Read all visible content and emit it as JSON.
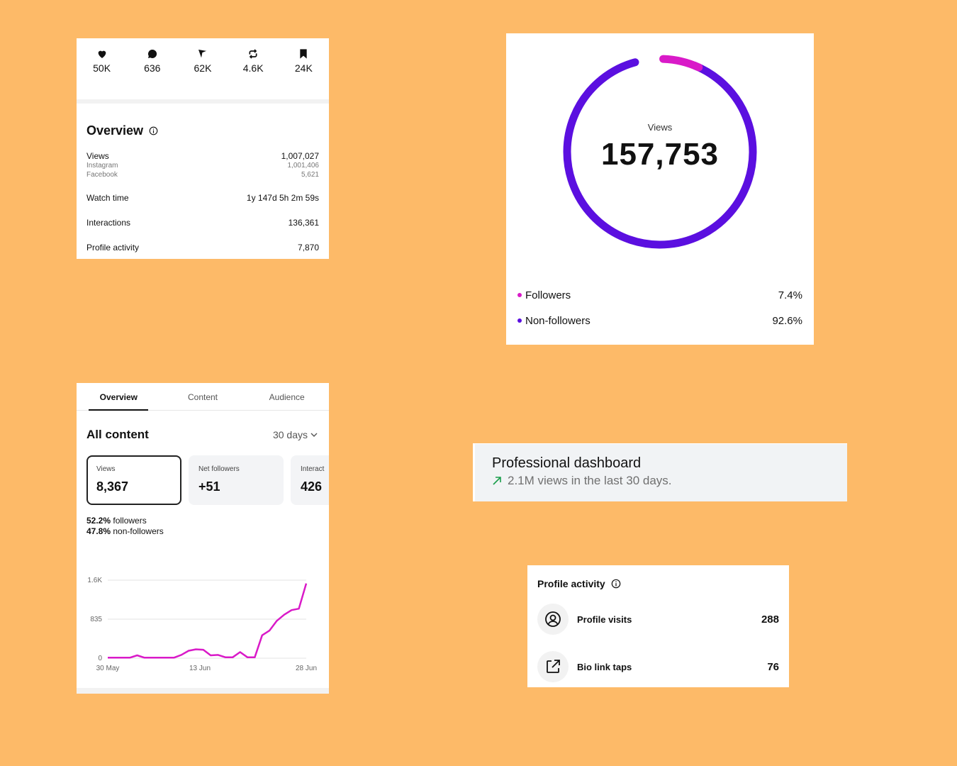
{
  "stats": {
    "items": [
      {
        "icon": "heart-icon",
        "value": "50K"
      },
      {
        "icon": "comment-icon",
        "value": "636"
      },
      {
        "icon": "send-icon",
        "value": "62K"
      },
      {
        "icon": "repost-icon",
        "value": "4.6K"
      },
      {
        "icon": "bookmark-icon",
        "value": "24K"
      }
    ]
  },
  "overview": {
    "title": "Overview",
    "views_label": "Views",
    "views_value": "1,007,027",
    "instagram_label": "Instagram",
    "instagram_value": "1,001,406",
    "facebook_label": "Facebook",
    "facebook_value": "5,621",
    "watch_label": "Watch time",
    "watch_value": "1y 147d 5h 2m 59s",
    "interactions_label": "Interactions",
    "interactions_value": "136,361",
    "profile_label": "Profile activity",
    "profile_value": "7,870"
  },
  "donut": {
    "label": "Views",
    "value": "157,753",
    "followers_label": "Followers",
    "followers_pct": "7.4%",
    "nonfollowers_label": "Non-followers",
    "nonfollowers_pct": "92.6%",
    "followers_color": "#D91AC8",
    "nonfollowers_color": "#5B0FE0"
  },
  "content": {
    "tabs": [
      "Overview",
      "Content",
      "Audience"
    ],
    "title": "All content",
    "range": "30 days",
    "metrics": [
      {
        "label": "Views",
        "value": "8,367"
      },
      {
        "label": "Net followers",
        "value": "+51"
      },
      {
        "label": "Interact",
        "value": "426"
      }
    ],
    "followers_pct": "52.2%",
    "followers_text": "followers",
    "nonfollowers_pct": "47.8%",
    "nonfollowers_text": "non-followers"
  },
  "chart_data": {
    "type": "line",
    "title": "",
    "xlabel": "",
    "ylabel": "",
    "yticks": [
      "0",
      "835",
      "1.6K"
    ],
    "ylim": [
      0,
      1670
    ],
    "xticks": [
      "30 May",
      "13 Jun",
      "28 Jun"
    ],
    "line_color": "#D91AC8",
    "series": [
      {
        "values": [
          10,
          10,
          10,
          10,
          60,
          10,
          10,
          10,
          10,
          10,
          70,
          160,
          190,
          180,
          60,
          70,
          20,
          20,
          130,
          20,
          20,
          490,
          590,
          800,
          930,
          1030,
          1060,
          1600
        ]
      }
    ]
  },
  "pro_dashboard": {
    "title": "Professional dashboard",
    "subtitle": "2.1M views in the last 30 days.",
    "arrow_color": "#1a9e4b"
  },
  "profile_activity": {
    "title": "Profile activity",
    "rows": [
      {
        "icon": "user-circle-icon",
        "label": "Profile visits",
        "value": "288"
      },
      {
        "icon": "external-link-icon",
        "label": "Bio link taps",
        "value": "76"
      }
    ]
  }
}
